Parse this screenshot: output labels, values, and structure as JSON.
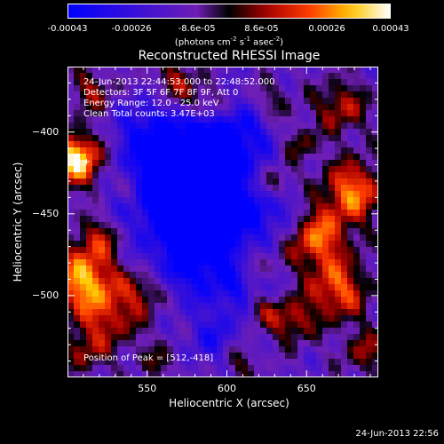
{
  "chart_data": {
    "type": "heatmap",
    "title": "Reconstructed RHESSI Image",
    "xlabel": "Heliocentric X (arcsec)",
    "ylabel": "Heliocentric Y (arcsec)",
    "xlim": [
      500,
      695
    ],
    "ylim": [
      -550,
      -360
    ],
    "x_ticks": [
      550,
      600,
      650
    ],
    "y_ticks": [
      -400,
      -450,
      -500
    ],
    "colorbar": {
      "min": -0.00043,
      "max": 0.00043,
      "tick_labels": [
        "-0.00043",
        "-0.00026",
        "-8.6e-05",
        "8.6e-05",
        "0.00026",
        "0.00043"
      ],
      "unit_label": "(photons cm",
      "unit_label_sup1": "-2",
      "unit_label_mid": " s",
      "unit_label_sup2": "-1",
      "unit_label_end": " asec",
      "unit_label_sup3": "-2",
      "unit_label_close": ")"
    },
    "info_lines": [
      "24-Jun-2013 22:44:53.000 to 22:48:52.000",
      "Detectors: 3F 5F 6F 7F 8F 9F, Att 0",
      "Energy Range: 12.0 - 25.0 keV",
      "Clean     Total counts: 3.47E+03"
    ],
    "peak_text": "Position of Peak = [512,-418]",
    "peak_position": [
      512,
      -418
    ],
    "grid": false
  },
  "footer": {
    "timestamp": "24-Jun-2013 22:56"
  }
}
